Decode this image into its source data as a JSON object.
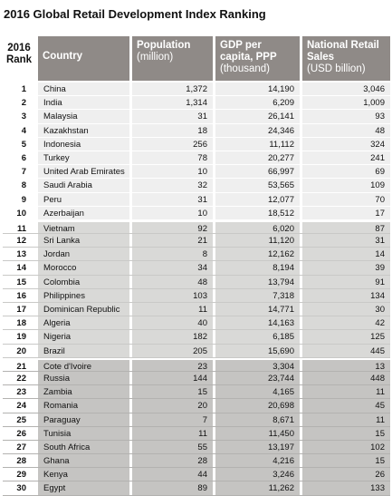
{
  "title": "2016 Global Retail Development Index Ranking",
  "headers": {
    "rank_line1": "2016",
    "rank_line2": "Rank",
    "country": "Country",
    "population": "Population",
    "population_unit": "(million)",
    "gdp": "GDP per capita, PPP",
    "gdp_unit": "(thousand)",
    "sales": "National Retail Sales",
    "sales_unit": "(USD billion)"
  },
  "rows": [
    {
      "rank": "1",
      "country": "China",
      "population": "1,372",
      "gdp": "14,190",
      "sales": "3,046"
    },
    {
      "rank": "2",
      "country": "India",
      "population": "1,314",
      "gdp": "6,209",
      "sales": "1,009"
    },
    {
      "rank": "3",
      "country": "Malaysia",
      "population": "31",
      "gdp": "26,141",
      "sales": "93"
    },
    {
      "rank": "4",
      "country": "Kazakhstan",
      "population": "18",
      "gdp": "24,346",
      "sales": "48"
    },
    {
      "rank": "5",
      "country": "Indonesia",
      "population": "256",
      "gdp": "11,112",
      "sales": "324"
    },
    {
      "rank": "6",
      "country": "Turkey",
      "population": "78",
      "gdp": "20,277",
      "sales": "241"
    },
    {
      "rank": "7",
      "country": "United Arab Emirates",
      "population": "10",
      "gdp": "66,997",
      "sales": "69"
    },
    {
      "rank": "8",
      "country": "Saudi Arabia",
      "population": "32",
      "gdp": "53,565",
      "sales": "109"
    },
    {
      "rank": "9",
      "country": "Peru",
      "population": "31",
      "gdp": "12,077",
      "sales": "70"
    },
    {
      "rank": "10",
      "country": "Azerbaijan",
      "population": "10",
      "gdp": "18,512",
      "sales": "17"
    },
    {
      "rank": "11",
      "country": "Vietnam",
      "population": "92",
      "gdp": "6,020",
      "sales": "87"
    },
    {
      "rank": "12",
      "country": "Sri Lanka",
      "population": "21",
      "gdp": "11,120",
      "sales": "31"
    },
    {
      "rank": "13",
      "country": "Jordan",
      "population": "8",
      "gdp": "12,162",
      "sales": "14"
    },
    {
      "rank": "14",
      "country": "Morocco",
      "population": "34",
      "gdp": "8,194",
      "sales": "39"
    },
    {
      "rank": "15",
      "country": "Colombia",
      "population": "48",
      "gdp": "13,794",
      "sales": "91"
    },
    {
      "rank": "16",
      "country": "Philippines",
      "population": "103",
      "gdp": "7,318",
      "sales": "134"
    },
    {
      "rank": "17",
      "country": "Dominican Republic",
      "population": "11",
      "gdp": "14,771",
      "sales": "30"
    },
    {
      "rank": "18",
      "country": "Algeria",
      "population": "40",
      "gdp": "14,163",
      "sales": "42"
    },
    {
      "rank": "19",
      "country": "Nigeria",
      "population": "182",
      "gdp": "6,185",
      "sales": "125"
    },
    {
      "rank": "20",
      "country": "Brazil",
      "population": "205",
      "gdp": "15,690",
      "sales": "445"
    },
    {
      "rank": "21",
      "country": "Cote d'Ivoire",
      "population": "23",
      "gdp": "3,304",
      "sales": "13"
    },
    {
      "rank": "22",
      "country": "Russia",
      "population": "144",
      "gdp": "23,744",
      "sales": "448"
    },
    {
      "rank": "23",
      "country": "Zambia",
      "population": "15",
      "gdp": "4,165",
      "sales": "11"
    },
    {
      "rank": "24",
      "country": "Romania",
      "population": "20",
      "gdp": "20,698",
      "sales": "45"
    },
    {
      "rank": "25",
      "country": "Paraguay",
      "population": "7",
      "gdp": "8,671",
      "sales": "11"
    },
    {
      "rank": "26",
      "country": "Tunisia",
      "population": "11",
      "gdp": "11,450",
      "sales": "15"
    },
    {
      "rank": "27",
      "country": "South Africa",
      "population": "55",
      "gdp": "13,197",
      "sales": "102"
    },
    {
      "rank": "28",
      "country": "Ghana",
      "population": "28",
      "gdp": "4,216",
      "sales": "15"
    },
    {
      "rank": "29",
      "country": "Kenya",
      "population": "44",
      "gdp": "3,246",
      "sales": "26"
    },
    {
      "rank": "30",
      "country": "Egypt",
      "population": "89",
      "gdp": "11,262",
      "sales": "133"
    }
  ],
  "colors": {
    "header_bg": "#8f8a87",
    "tier1_bg": "#efefef",
    "tier2_bg": "#d9d9d7",
    "tier3_bg": "#c5c4c2"
  }
}
